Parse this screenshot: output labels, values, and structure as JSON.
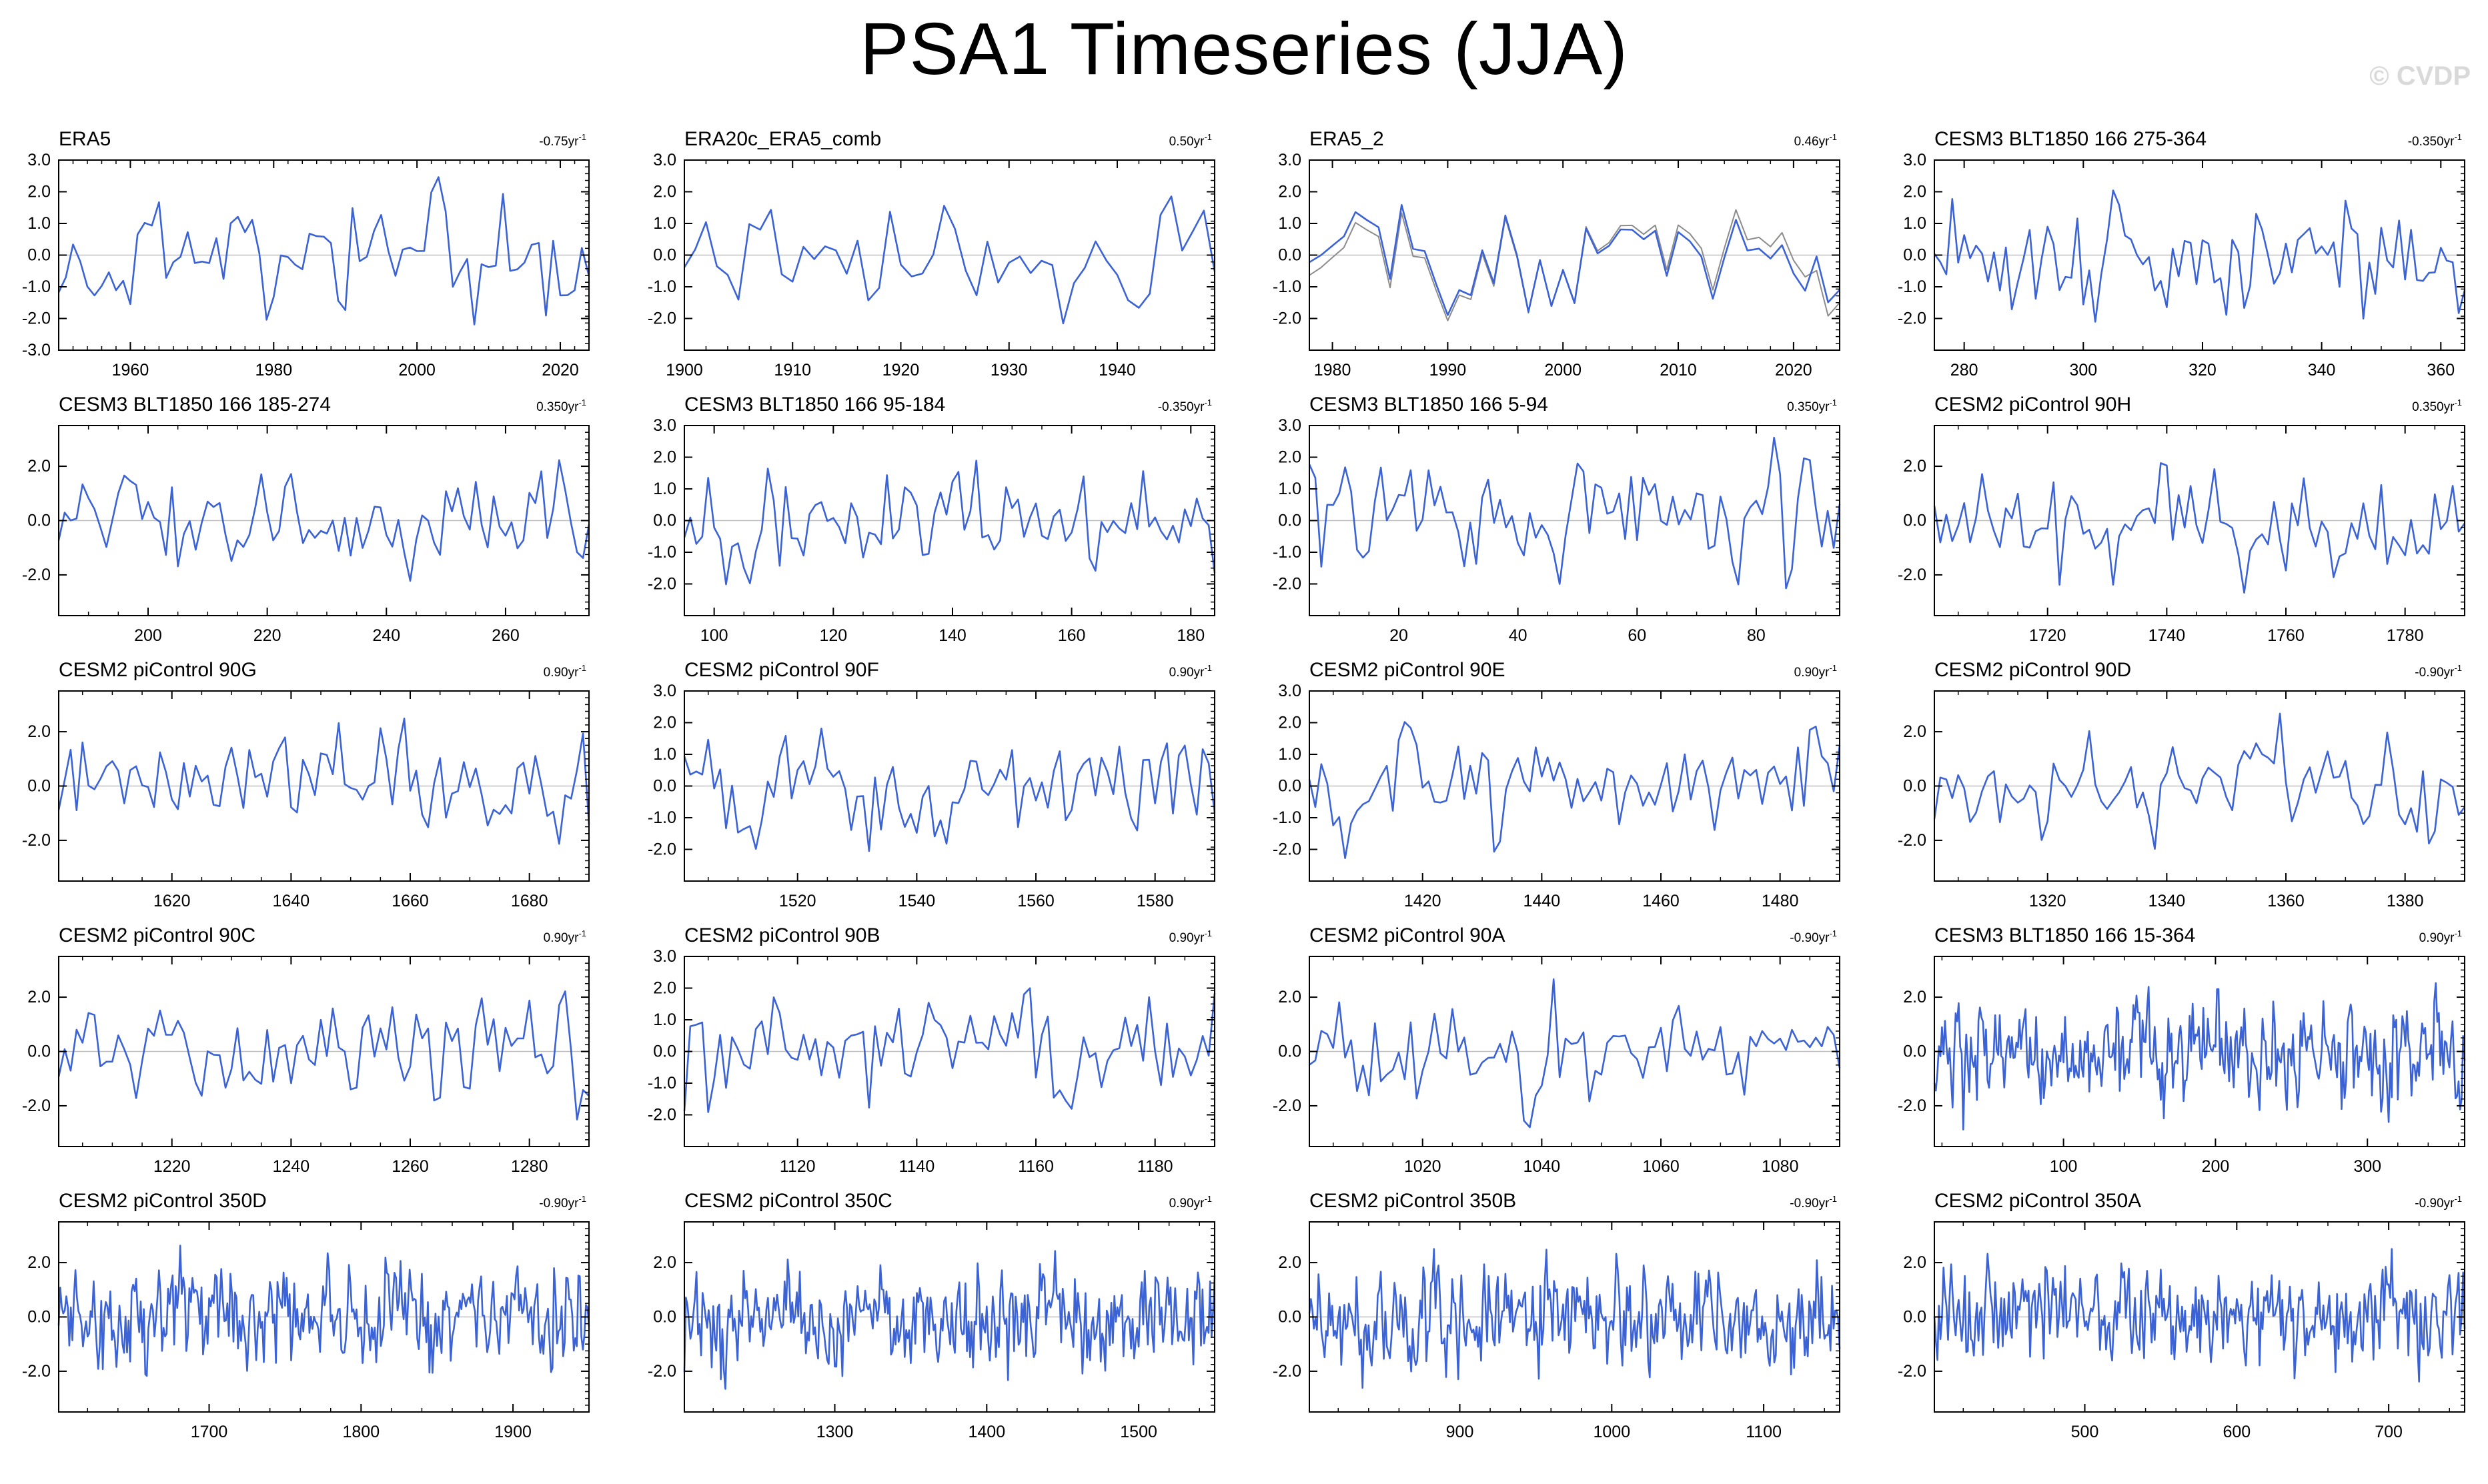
{
  "figure": {
    "title": "PSA1 Timeseries (JJA)",
    "credit": "© CVDP"
  },
  "colors": {
    "series": "#3b63d6",
    "reference": "#8c8c8c",
    "zero_line": "#bfbfbf",
    "frame": "#000000"
  },
  "chart_data": [
    {
      "type": "line",
      "title": "ERA5",
      "trend": "-0.75yr",
      "trend_sup": "-1",
      "xlim": [
        1950,
        2024
      ],
      "ylim": [
        -3,
        3
      ],
      "yticks": [
        -3,
        -2,
        -1,
        0,
        1,
        2,
        3
      ],
      "xticks": [
        1960,
        1980,
        2000,
        2020
      ],
      "n": 75,
      "seed": 11,
      "amp": 0.95
    },
    {
      "type": "line",
      "title": "ERA20c_ERA5_comb",
      "trend": "0.50yr",
      "trend_sup": "-1",
      "xlim": [
        1900,
        1949
      ],
      "ylim": [
        -3,
        3
      ],
      "yticks": [
        -2,
        -1,
        0,
        1,
        2,
        3
      ],
      "xticks": [
        1900,
        1910,
        1920,
        1930,
        1940
      ],
      "n": 50,
      "seed": 23,
      "amp": 0.95
    },
    {
      "type": "line",
      "title": "ERA5_2",
      "trend": "0.46yr",
      "trend_sup": "-1",
      "xlim": [
        1978,
        2024
      ],
      "ylim": [
        -3,
        3
      ],
      "yticks": [
        -2,
        -1,
        0,
        1,
        2,
        3
      ],
      "xticks": [
        1980,
        1990,
        2000,
        2010,
        2020
      ],
      "n": 47,
      "seed": 37,
      "amp": 0.95,
      "reference": true
    },
    {
      "type": "line",
      "title": "CESM3 BLT1850 166 275-364",
      "trend": "-0.350yr",
      "trend_sup": "-1",
      "xlim": [
        275,
        364
      ],
      "ylim": [
        -3,
        3
      ],
      "yticks": [
        -2,
        -1,
        0,
        1,
        2,
        3
      ],
      "xticks": [
        280,
        300,
        320,
        340,
        360
      ],
      "n": 90,
      "seed": 41,
      "amp": 0.95
    },
    {
      "type": "line",
      "title": "CESM3 BLT1850 166 185-274",
      "trend": "0.350yr",
      "trend_sup": "-1",
      "xlim": [
        185,
        274
      ],
      "ylim": [
        -3.5,
        3.5
      ],
      "yticks": [
        -2,
        0,
        2
      ],
      "xticks": [
        200,
        220,
        240,
        260
      ],
      "n": 90,
      "seed": 53,
      "amp": 1.0
    },
    {
      "type": "line",
      "title": "CESM3 BLT1850 166 95-184",
      "trend": "-0.350yr",
      "trend_sup": "-1",
      "xlim": [
        95,
        184
      ],
      "ylim": [
        -3,
        3
      ],
      "yticks": [
        -2,
        -1,
        0,
        1,
        2,
        3
      ],
      "xticks": [
        100,
        120,
        140,
        160,
        180
      ],
      "n": 90,
      "seed": 67,
      "amp": 0.95
    },
    {
      "type": "line",
      "title": "CESM3 BLT1850 166 5-94",
      "trend": "0.350yr",
      "trend_sup": "-1",
      "xlim": [
        5,
        94
      ],
      "ylim": [
        -3,
        3
      ],
      "yticks": [
        -2,
        -1,
        0,
        1,
        2,
        3
      ],
      "xticks": [
        20,
        40,
        60,
        80
      ],
      "n": 90,
      "seed": 79,
      "amp": 0.95
    },
    {
      "type": "line",
      "title": "CESM2 piControl 90H",
      "trend": "0.350yr",
      "trend_sup": "-1",
      "xlim": [
        1701,
        1790
      ],
      "ylim": [
        -3.5,
        3.5
      ],
      "yticks": [
        -2,
        0,
        2
      ],
      "xticks": [
        1720,
        1740,
        1760,
        1780
      ],
      "n": 90,
      "seed": 83,
      "amp": 1.0
    },
    {
      "type": "line",
      "title": "CESM2 piControl 90G",
      "trend": "0.90yr",
      "trend_sup": "-1",
      "xlim": [
        1601,
        1690
      ],
      "ylim": [
        -3.5,
        3.5
      ],
      "yticks": [
        -2,
        0,
        2
      ],
      "xticks": [
        1620,
        1640,
        1660,
        1680
      ],
      "n": 90,
      "seed": 97,
      "amp": 1.0
    },
    {
      "type": "line",
      "title": "CESM2 piControl 90F",
      "trend": "0.90yr",
      "trend_sup": "-1",
      "xlim": [
        1501,
        1590
      ],
      "ylim": [
        -3,
        3
      ],
      "yticks": [
        -2,
        -1,
        0,
        1,
        2,
        3
      ],
      "xticks": [
        1520,
        1540,
        1560,
        1580
      ],
      "n": 90,
      "seed": 101,
      "amp": 0.95
    },
    {
      "type": "line",
      "title": "CESM2 piControl 90E",
      "trend": "0.90yr",
      "trend_sup": "-1",
      "xlim": [
        1401,
        1490
      ],
      "ylim": [
        -3,
        3
      ],
      "yticks": [
        -2,
        -1,
        0,
        1,
        2,
        3
      ],
      "xticks": [
        1420,
        1440,
        1460,
        1480
      ],
      "n": 90,
      "seed": 113,
      "amp": 0.95
    },
    {
      "type": "line",
      "title": "CESM2 piControl 90D",
      "trend": "-0.90yr",
      "trend_sup": "-1",
      "xlim": [
        1301,
        1390
      ],
      "ylim": [
        -3.5,
        3.5
      ],
      "yticks": [
        -2,
        0,
        2
      ],
      "xticks": [
        1320,
        1340,
        1360,
        1380
      ],
      "n": 90,
      "seed": 127,
      "amp": 1.0
    },
    {
      "type": "line",
      "title": "CESM2 piControl 90C",
      "trend": "0.90yr",
      "trend_sup": "-1",
      "xlim": [
        1201,
        1290
      ],
      "ylim": [
        -3.5,
        3.5
      ],
      "yticks": [
        -2,
        0,
        2
      ],
      "xticks": [
        1220,
        1240,
        1260,
        1280
      ],
      "n": 90,
      "seed": 131,
      "amp": 1.0
    },
    {
      "type": "line",
      "title": "CESM2 piControl 90B",
      "trend": "0.90yr",
      "trend_sup": "-1",
      "xlim": [
        1101,
        1190
      ],
      "ylim": [
        -3,
        3
      ],
      "yticks": [
        -2,
        -1,
        0,
        1,
        2,
        3
      ],
      "xticks": [
        1120,
        1140,
        1160,
        1180
      ],
      "n": 90,
      "seed": 139,
      "amp": 0.95
    },
    {
      "type": "line",
      "title": "CESM2 piControl 90A",
      "trend": "-0.90yr",
      "trend_sup": "-1",
      "xlim": [
        1001,
        1090
      ],
      "ylim": [
        -3.5,
        3.5
      ],
      "yticks": [
        -2,
        0,
        2
      ],
      "xticks": [
        1020,
        1040,
        1060,
        1080
      ],
      "n": 90,
      "seed": 149,
      "amp": 1.0
    },
    {
      "type": "line",
      "title": "CESM3 BLT1850 166 15-364",
      "trend": "0.90yr",
      "trend_sup": "-1",
      "xlim": [
        15,
        364
      ],
      "ylim": [
        -3.5,
        3.5
      ],
      "yticks": [
        -2,
        0,
        2
      ],
      "xticks": [
        100,
        200,
        300
      ],
      "n": 350,
      "seed": 151,
      "amp": 1.0
    },
    {
      "type": "line",
      "title": "CESM2 piControl 350D",
      "trend": "-0.90yr",
      "trend_sup": "-1",
      "xlim": [
        1601,
        1950
      ],
      "ylim": [
        -3.5,
        3.5
      ],
      "yticks": [
        -2,
        0,
        2
      ],
      "xticks": [
        1700,
        1800,
        1900
      ],
      "n": 350,
      "seed": 163,
      "amp": 1.0
    },
    {
      "type": "line",
      "title": "CESM2 piControl 350C",
      "trend": "0.90yr",
      "trend_sup": "-1",
      "xlim": [
        1201,
        1550
      ],
      "ylim": [
        -3.5,
        3.5
      ],
      "yticks": [
        -2,
        0,
        2
      ],
      "xticks": [
        1300,
        1400,
        1500
      ],
      "n": 350,
      "seed": 173,
      "amp": 1.0
    },
    {
      "type": "line",
      "title": "CESM2 piControl 350B",
      "trend": "-0.90yr",
      "trend_sup": "-1",
      "xlim": [
        801,
        1150
      ],
      "ylim": [
        -3.5,
        3.5
      ],
      "yticks": [
        -2,
        0,
        2
      ],
      "xticks": [
        900,
        1000,
        1100
      ],
      "n": 350,
      "seed": 181,
      "amp": 1.0
    },
    {
      "type": "line",
      "title": "CESM2 piControl 350A",
      "trend": "-0.90yr",
      "trend_sup": "-1",
      "xlim": [
        401,
        750
      ],
      "ylim": [
        -3.5,
        3.5
      ],
      "yticks": [
        -2,
        0,
        2
      ],
      "xticks": [
        500,
        600,
        700
      ],
      "n": 350,
      "seed": 191,
      "amp": 1.0
    }
  ]
}
